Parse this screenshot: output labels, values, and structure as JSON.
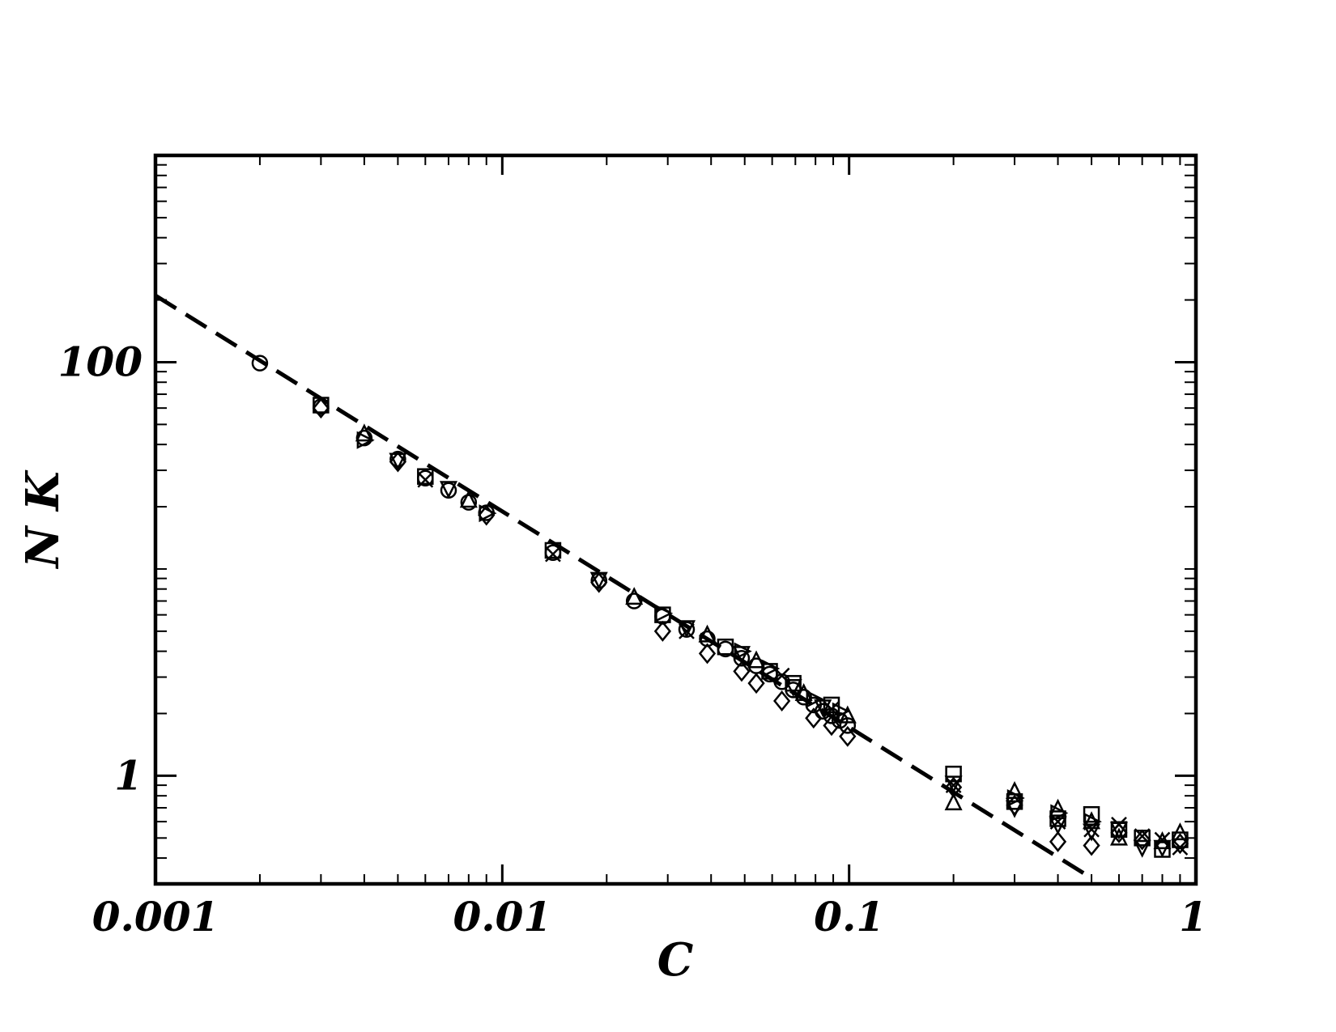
{
  "chart_data": {
    "type": "scatter",
    "title": "",
    "xlabel": "C",
    "ylabel": "N K",
    "xscale": "log",
    "yscale": "log",
    "xlim": [
      0.001,
      1
    ],
    "ylim": [
      0.3,
      1000
    ],
    "grid": false,
    "x_ticks": [
      {
        "value": 0.001,
        "label": "0.001"
      },
      {
        "value": 0.01,
        "label": "0.01"
      },
      {
        "value": 0.1,
        "label": "0.1"
      },
      {
        "value": 1,
        "label": "1"
      }
    ],
    "y_ticks": [
      {
        "value": 1,
        "label": "1"
      },
      {
        "value": 100,
        "label": "100"
      }
    ],
    "fit_line": {
      "style": "dashed",
      "x": [
        0.001,
        0.5
      ],
      "y": [
        210,
        0.32
      ]
    },
    "series": [
      {
        "marker": "circle",
        "x": [
          0.002,
          0.003,
          0.004,
          0.005,
          0.006,
          0.007,
          0.008,
          0.009,
          0.014,
          0.019,
          0.024,
          0.029,
          0.034,
          0.039,
          0.044,
          0.049,
          0.054,
          0.059,
          0.064,
          0.069,
          0.074,
          0.079,
          0.084,
          0.089,
          0.094,
          0.099
        ],
        "y": [
          99,
          61,
          43,
          34,
          27.5,
          24,
          21,
          18.7,
          12,
          8.8,
          7.0,
          5.9,
          5.1,
          4.6,
          4.1,
          3.7,
          3.4,
          3.1,
          2.85,
          2.6,
          2.4,
          2.2,
          2.05,
          1.95,
          1.85,
          1.75
        ]
      },
      {
        "marker": "diamond",
        "x": [
          0.003,
          0.005,
          0.009,
          0.019,
          0.029,
          0.039,
          0.049,
          0.054,
          0.064,
          0.079,
          0.089,
          0.099,
          0.2,
          0.3,
          0.4,
          0.5,
          0.6,
          0.7,
          0.9
        ],
        "y": [
          60,
          33,
          18.2,
          8.6,
          5.0,
          3.9,
          3.2,
          2.8,
          2.3,
          1.9,
          1.75,
          1.55,
          0.88,
          0.72,
          0.48,
          0.46,
          0.53,
          0.49,
          0.47
        ]
      },
      {
        "marker": "square",
        "x": [
          0.003,
          0.006,
          0.014,
          0.029,
          0.044,
          0.059,
          0.069,
          0.089,
          0.2,
          0.3,
          0.4,
          0.5,
          0.6,
          0.7,
          0.8,
          0.9
        ],
        "y": [
          62,
          28,
          12.3,
          6.0,
          4.2,
          3.2,
          2.8,
          2.2,
          1.02,
          0.75,
          0.62,
          0.65,
          0.55,
          0.5,
          0.44,
          0.49
        ]
      },
      {
        "marker": "triangle-up",
        "x": [
          0.004,
          0.008,
          0.024,
          0.039,
          0.054,
          0.074,
          0.099,
          0.2,
          0.3,
          0.4,
          0.5,
          0.6,
          0.8,
          0.9
        ],
        "y": [
          45,
          21.5,
          7.3,
          4.8,
          3.6,
          2.5,
          1.95,
          0.74,
          0.84,
          0.69,
          0.6,
          0.5,
          0.48,
          0.53
        ]
      },
      {
        "marker": "triangle-down",
        "x": [
          0.005,
          0.007,
          0.019,
          0.034,
          0.049,
          0.069,
          0.084,
          0.2,
          0.3,
          0.4,
          0.5,
          0.6,
          0.7,
          0.8
        ],
        "y": [
          33.5,
          24.5,
          8.9,
          5.2,
          3.9,
          2.7,
          2.15,
          0.92,
          0.7,
          0.58,
          0.54,
          0.55,
          0.45,
          0.45
        ]
      },
      {
        "marker": "triangle-right",
        "x": [
          0.004,
          0.009,
          0.029,
          0.049,
          0.059,
          0.079,
          0.094,
          0.3,
          0.4,
          0.5
        ],
        "y": [
          42,
          18.6,
          6.1,
          4.0,
          3.3,
          2.35,
          2.05,
          0.78,
          0.66,
          0.6
        ]
      },
      {
        "marker": "x",
        "x": [
          0.006,
          0.014,
          0.034,
          0.064,
          0.089,
          0.2,
          0.4,
          0.5,
          0.6,
          0.7,
          0.8,
          0.9
        ],
        "y": [
          27,
          11.8,
          5.0,
          3.05,
          2.1,
          0.9,
          0.6,
          0.55,
          0.58,
          0.51,
          0.49,
          0.45
        ]
      }
    ]
  }
}
